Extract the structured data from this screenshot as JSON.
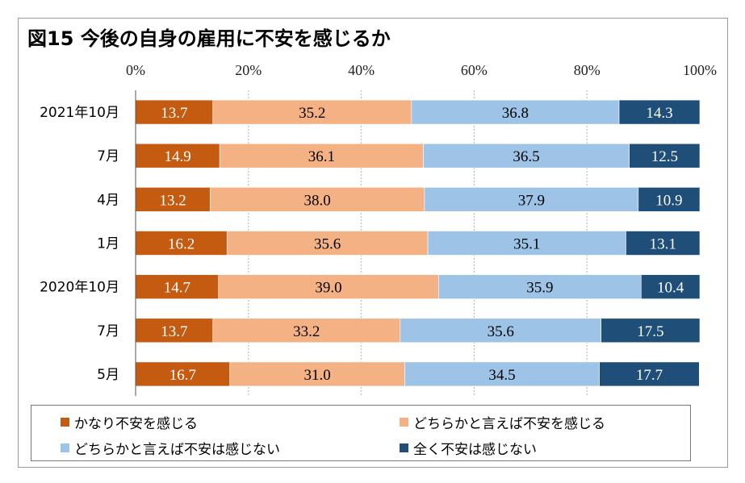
{
  "title": "図15 今後の自身の雇用に不安を感じるか",
  "chart_data": {
    "type": "bar",
    "orientation": "horizontal",
    "stacked": true,
    "categories": [
      "2021年10月",
      "7月",
      "4月",
      "1月",
      "2020年10月",
      "7月",
      "5月"
    ],
    "series": [
      {
        "name": "かなり不安を感じる",
        "color": "#c55a11",
        "label_color": "#ffffff",
        "values": [
          13.7,
          14.9,
          13.2,
          16.2,
          14.7,
          13.7,
          16.7
        ]
      },
      {
        "name": "どちらかと言えば不安を感じる",
        "color": "#f4b183",
        "label_color": "#000000",
        "values": [
          35.2,
          36.1,
          38.0,
          35.6,
          39.0,
          33.2,
          31.0
        ]
      },
      {
        "name": "どちらかと言えば不安は感じない",
        "color": "#9dc3e6",
        "label_color": "#000000",
        "values": [
          36.8,
          36.5,
          37.9,
          35.1,
          35.9,
          35.6,
          34.5
        ]
      },
      {
        "name": "全く不安は感じない",
        "color": "#1f4e79",
        "label_color": "#ffffff",
        "values": [
          14.3,
          12.5,
          10.9,
          13.1,
          10.4,
          17.5,
          17.7
        ]
      }
    ],
    "xlim": [
      0,
      100
    ],
    "x_ticks": [
      "0%",
      "20%",
      "40%",
      "60%",
      "80%",
      "100%"
    ],
    "grid": true,
    "legend_position": "bottom"
  }
}
